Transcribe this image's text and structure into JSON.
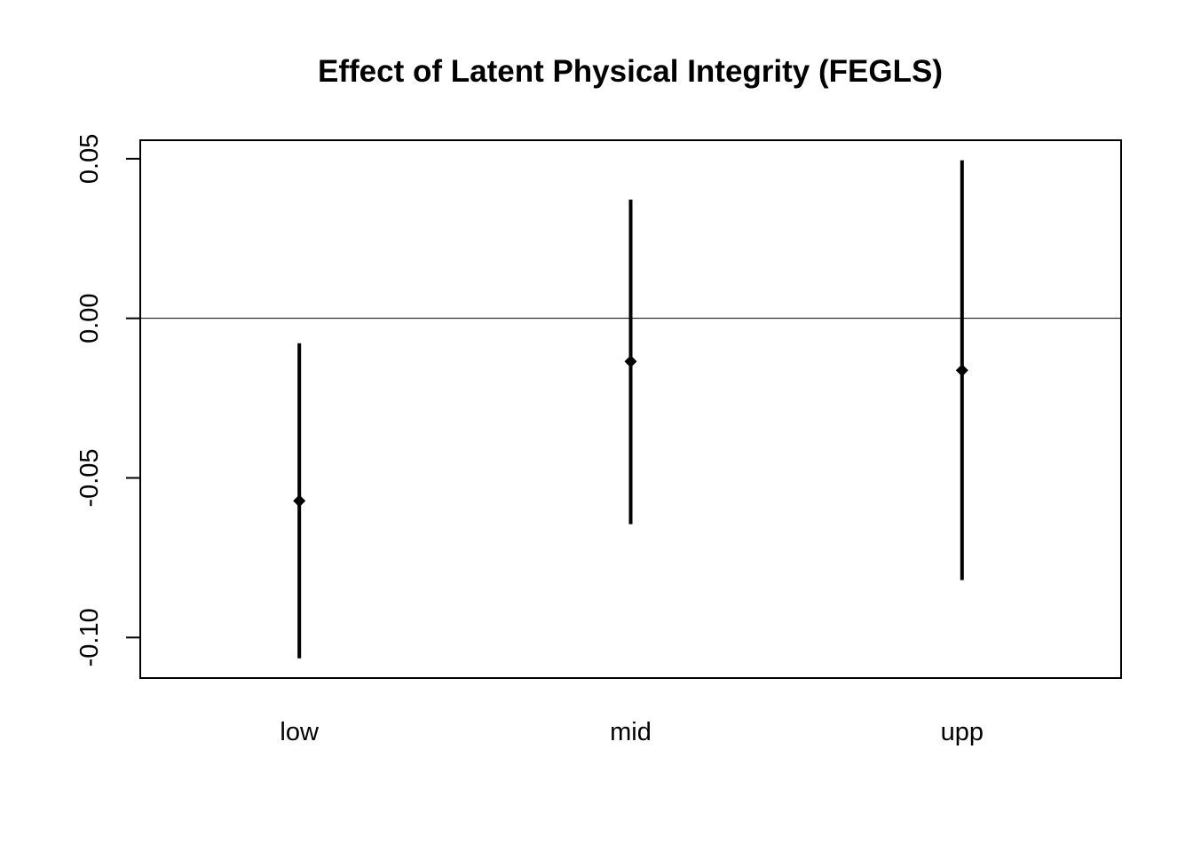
{
  "chart_data": {
    "type": "errorbar",
    "title": "Effect of Latent Physical Integrity (FEGLS)",
    "xlabel": "",
    "ylabel": "",
    "categories": [
      "low",
      "mid",
      "upp"
    ],
    "estimates": [
      -0.0572,
      -0.0135,
      -0.0163
    ],
    "lower": [
      -0.1065,
      -0.0645,
      -0.082
    ],
    "upper": [
      -0.0078,
      0.0372,
      0.0495
    ],
    "ylim": [
      -0.1127,
      0.0558
    ],
    "yticks": [
      -0.1,
      -0.05,
      0.0,
      0.05
    ],
    "ytick_labels": [
      "-0.10",
      "-0.05",
      "0.00",
      "0.05"
    ],
    "reference_line": 0,
    "grid": false,
    "legend": "none",
    "colors": {
      "line": "#000000",
      "background": "#ffffff"
    }
  }
}
